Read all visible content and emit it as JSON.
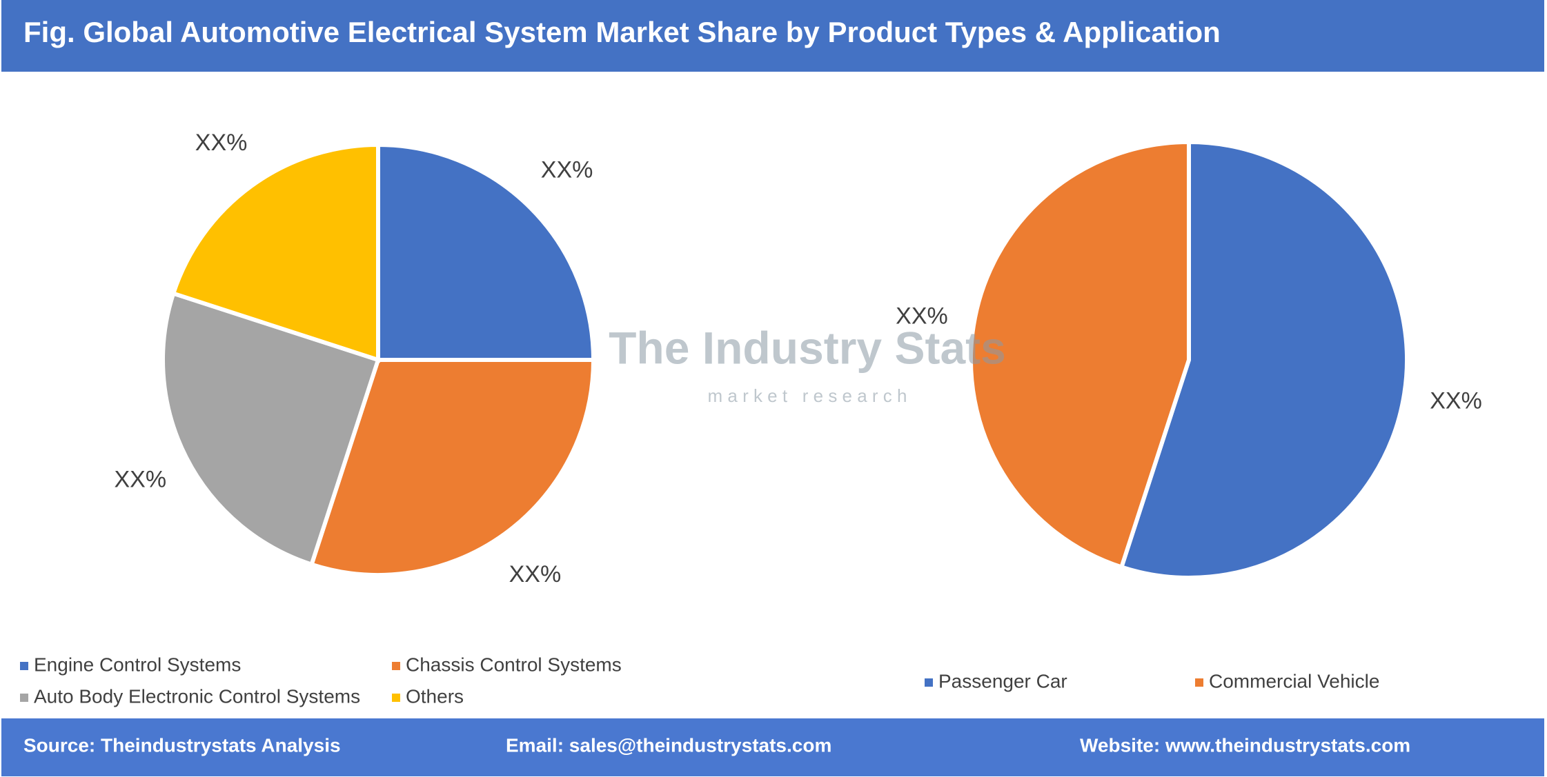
{
  "title": "Fig. Global Automotive Electrical System Market Share by Product Types & Application",
  "watermark": {
    "name": "The Industry Stats",
    "tagline": "m a r k e t   r e s e a r c h"
  },
  "footer": {
    "source": "Source: Theindustrystats Analysis",
    "email": "Email: sales@theindustrystats.com",
    "website": "Website: www.theindustrystats.com"
  },
  "chart_data": [
    {
      "type": "pie",
      "categories": [
        "Engine Control Systems",
        "Chassis Control Systems",
        "Auto Body Electronic Control Systems",
        "Others"
      ],
      "values": [
        25,
        30,
        25,
        20
      ],
      "value_labels": [
        "XX%",
        "XX%",
        "XX%",
        "XX%"
      ],
      "colors": [
        "#4472c4",
        "#ed7d31",
        "#a5a5a5",
        "#ffc000"
      ]
    },
    {
      "type": "pie",
      "categories": [
        "Passenger Car",
        "Commercial Vehicle"
      ],
      "values": [
        55,
        45
      ],
      "value_labels": [
        "XX%",
        "XX%"
      ],
      "colors": [
        "#4472c4",
        "#ed7d31"
      ]
    }
  ]
}
